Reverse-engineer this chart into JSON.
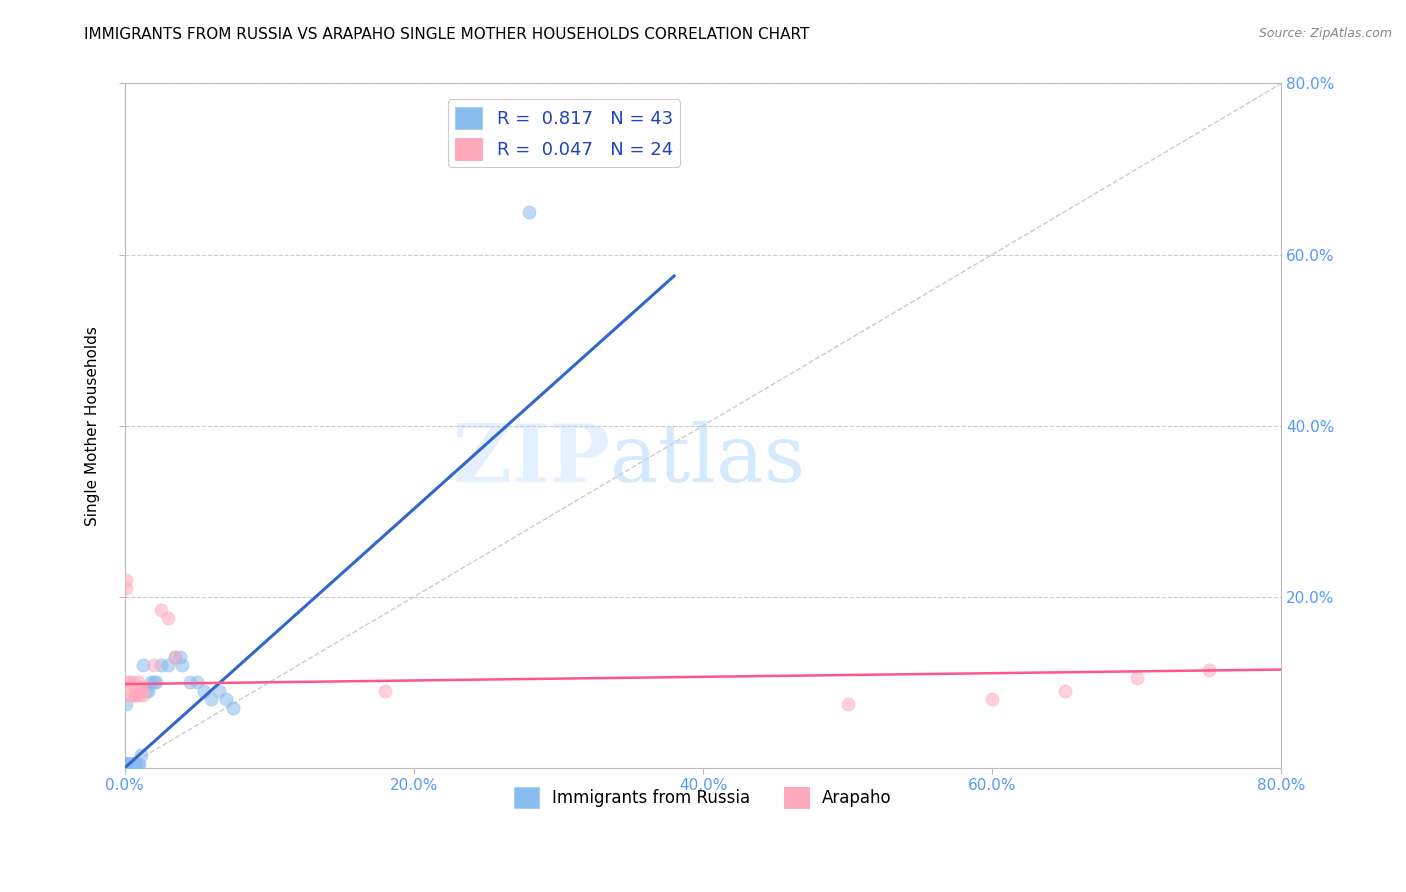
{
  "title": "IMMIGRANTS FROM RUSSIA VS ARAPAHO SINGLE MOTHER HOUSEHOLDS CORRELATION CHART",
  "source": "Source: ZipAtlas.com",
  "ylabel": "Single Mother Households",
  "xlim": [
    0.0,
    0.8
  ],
  "ylim": [
    0.0,
    0.8
  ],
  "xtick_labels": [
    "0.0%",
    "20.0%",
    "40.0%",
    "60.0%",
    "80.0%"
  ],
  "xtick_vals": [
    0.0,
    0.2,
    0.4,
    0.6,
    0.8
  ],
  "ytick_vals": [
    0.2,
    0.4,
    0.6,
    0.8
  ],
  "right_ytick_labels": [
    "20.0%",
    "40.0%",
    "60.0%",
    "80.0%"
  ],
  "right_ytick_vals": [
    0.2,
    0.4,
    0.6,
    0.8
  ],
  "legend1_label": "Immigrants from Russia",
  "legend2_label": "Arapaho",
  "r1": 0.817,
  "n1": 43,
  "r2": 0.047,
  "n2": 24,
  "blue_color": "#88BBEE",
  "pink_color": "#FFAABB",
  "blue_line_color": "#3366CC",
  "pink_line_color": "#FF5588",
  "diag_color": "#CCCCCC",
  "watermark_zip": "ZIP",
  "watermark_atlas": "atlas",
  "title_fontsize": 11,
  "axis_label_color": "#5599FF",
  "scatter_alpha": 0.55,
  "scatter_size": 90,
  "blue_scatter": [
    [
      0.001,
      0.005
    ],
    [
      0.001,
      0.005
    ],
    [
      0.001,
      0.005
    ],
    [
      0.001,
      0.005
    ],
    [
      0.002,
      0.005
    ],
    [
      0.002,
      0.005
    ],
    [
      0.002,
      0.005
    ],
    [
      0.003,
      0.005
    ],
    [
      0.003,
      0.005
    ],
    [
      0.003,
      0.005
    ],
    [
      0.004,
      0.005
    ],
    [
      0.004,
      0.005
    ],
    [
      0.005,
      0.005
    ],
    [
      0.005,
      0.005
    ],
    [
      0.006,
      0.005
    ],
    [
      0.006,
      0.005
    ],
    [
      0.007,
      0.005
    ],
    [
      0.007,
      0.005
    ],
    [
      0.008,
      0.005
    ],
    [
      0.009,
      0.005
    ],
    [
      0.01,
      0.005
    ],
    [
      0.011,
      0.015
    ],
    [
      0.013,
      0.12
    ],
    [
      0.015,
      0.09
    ],
    [
      0.016,
      0.09
    ],
    [
      0.018,
      0.1
    ],
    [
      0.02,
      0.1
    ],
    [
      0.022,
      0.1
    ],
    [
      0.025,
      0.12
    ],
    [
      0.03,
      0.12
    ],
    [
      0.035,
      0.13
    ],
    [
      0.038,
      0.13
    ],
    [
      0.04,
      0.12
    ],
    [
      0.045,
      0.1
    ],
    [
      0.05,
      0.1
    ],
    [
      0.055,
      0.09
    ],
    [
      0.06,
      0.08
    ],
    [
      0.065,
      0.09
    ],
    [
      0.07,
      0.08
    ],
    [
      0.075,
      0.07
    ],
    [
      0.001,
      0.075
    ],
    [
      0.28,
      0.65
    ],
    [
      0.001,
      0.005
    ]
  ],
  "pink_scatter": [
    [
      0.001,
      0.22
    ],
    [
      0.002,
      0.1
    ],
    [
      0.003,
      0.1
    ],
    [
      0.004,
      0.085
    ],
    [
      0.005,
      0.085
    ],
    [
      0.006,
      0.1
    ],
    [
      0.007,
      0.085
    ],
    [
      0.008,
      0.085
    ],
    [
      0.009,
      0.1
    ],
    [
      0.01,
      0.085
    ],
    [
      0.011,
      0.095
    ],
    [
      0.012,
      0.09
    ],
    [
      0.013,
      0.085
    ],
    [
      0.02,
      0.12
    ],
    [
      0.025,
      0.185
    ],
    [
      0.03,
      0.175
    ],
    [
      0.035,
      0.13
    ],
    [
      0.18,
      0.09
    ],
    [
      0.5,
      0.075
    ],
    [
      0.6,
      0.08
    ],
    [
      0.65,
      0.09
    ],
    [
      0.7,
      0.105
    ],
    [
      0.75,
      0.115
    ],
    [
      0.001,
      0.21
    ]
  ],
  "blue_line_x": [
    0.0,
    0.38
  ],
  "blue_line_y": [
    0.0,
    0.575
  ],
  "pink_line_x": [
    0.0,
    0.8
  ],
  "pink_line_y": [
    0.098,
    0.115
  ]
}
